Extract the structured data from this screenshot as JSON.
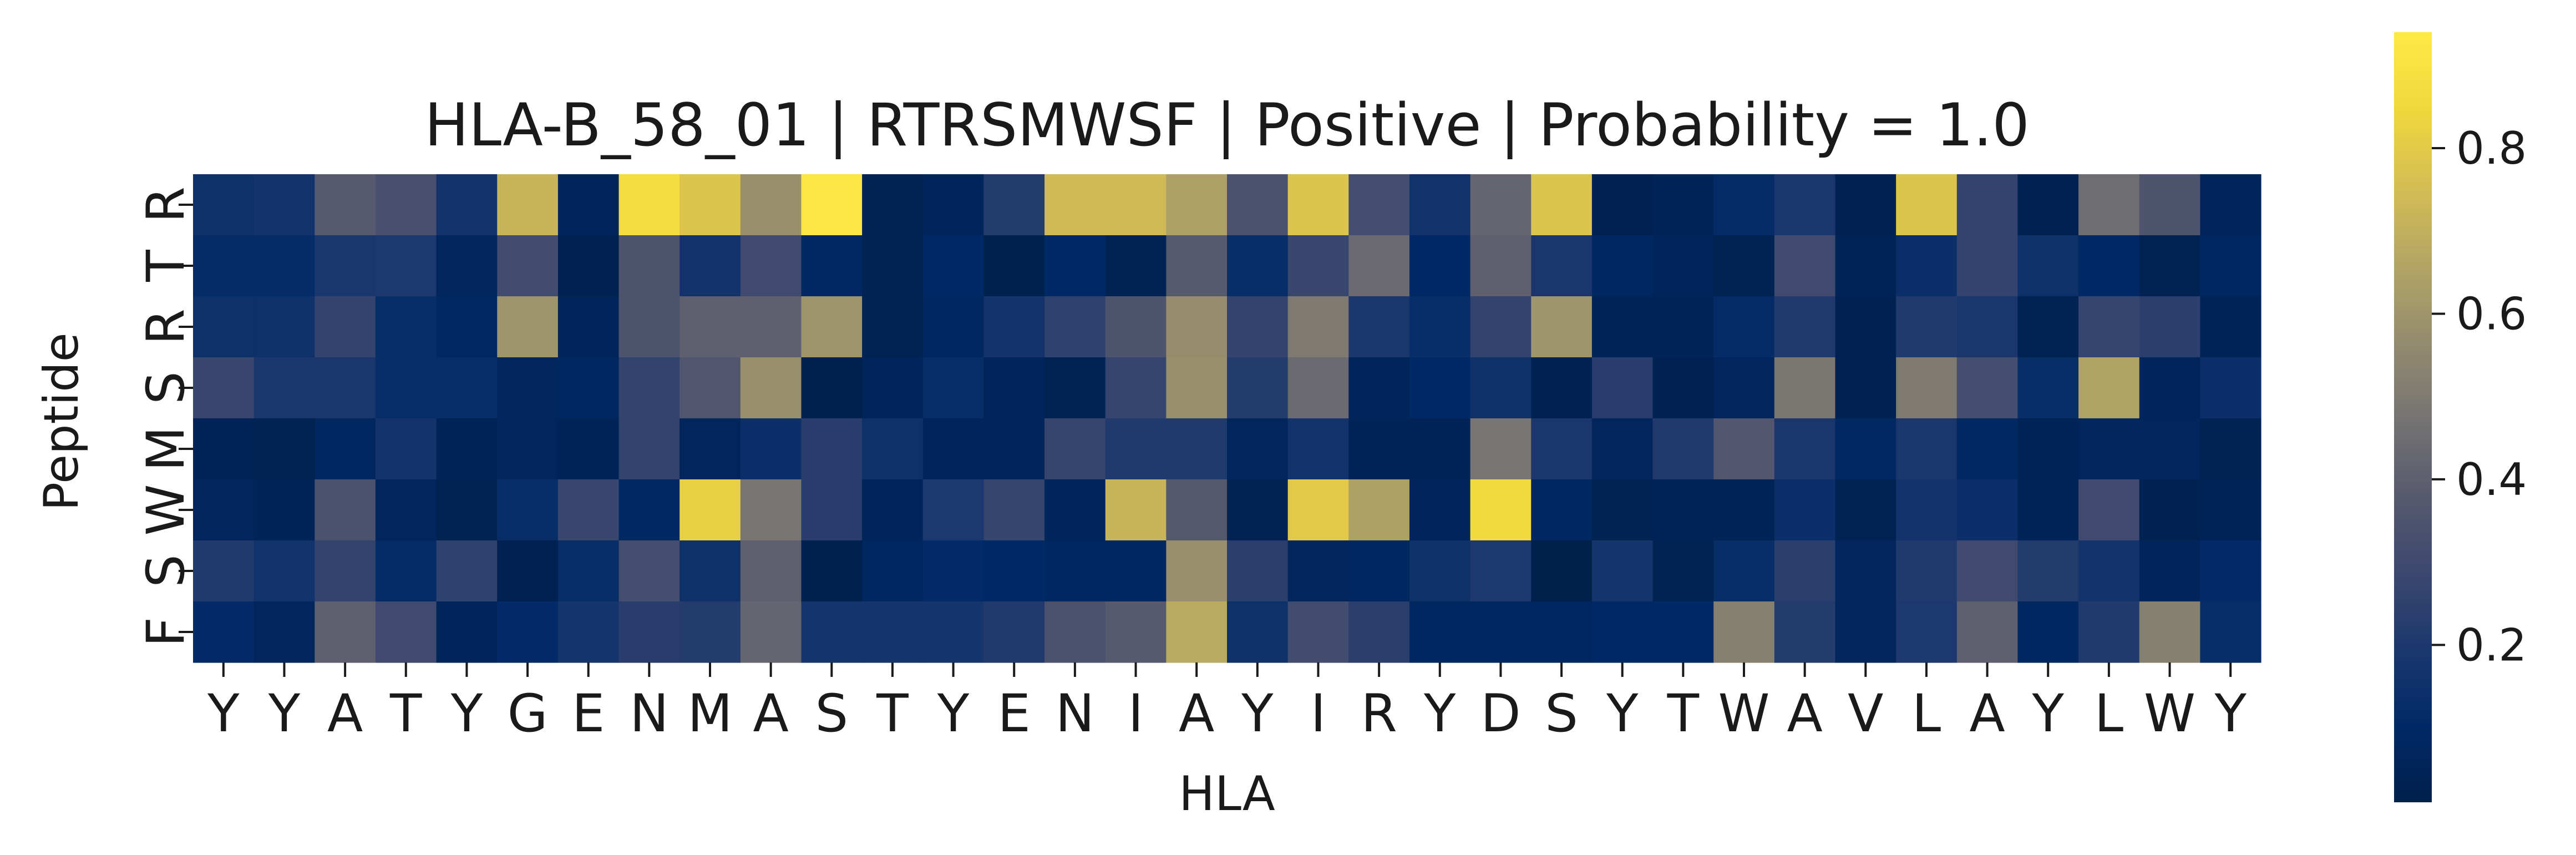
{
  "chart_data": {
    "type": "heatmap",
    "title": "HLA-B_58_01 | RTRSMWSF | Positive | Probability = 1.0",
    "xlabel": "HLA",
    "ylabel": "Peptide",
    "x_tick_labels": [
      "Y",
      "Y",
      "A",
      "T",
      "Y",
      "G",
      "E",
      "N",
      "M",
      "A",
      "S",
      "T",
      "Y",
      "E",
      "N",
      "I",
      "A",
      "Y",
      "I",
      "R",
      "Y",
      "D",
      "S",
      "Y",
      "T",
      "W",
      "A",
      "V",
      "L",
      "A",
      "Y",
      "L",
      "W",
      "Y"
    ],
    "y_tick_labels": [
      "R",
      "T",
      "R",
      "S",
      "M",
      "W",
      "S",
      "F"
    ],
    "colormap": "cividis",
    "colorbar": {
      "range": [
        0.01,
        0.94
      ],
      "ticks": [
        0.2,
        0.4,
        0.6,
        0.8
      ],
      "tick_labels": [
        "0.2",
        "0.4",
        "0.6",
        "0.8"
      ]
    },
    "values": [
      [
        0.15,
        0.17,
        0.38,
        0.33,
        0.17,
        0.72,
        0.06,
        0.88,
        0.78,
        0.58,
        0.93,
        0.04,
        0.06,
        0.22,
        0.74,
        0.74,
        0.64,
        0.34,
        0.78,
        0.32,
        0.16,
        0.42,
        0.78,
        0.03,
        0.05,
        0.12,
        0.19,
        0.03,
        0.78,
        0.26,
        0.03,
        0.45,
        0.35,
        0.06
      ],
      [
        0.12,
        0.12,
        0.19,
        0.2,
        0.07,
        0.31,
        0.03,
        0.35,
        0.17,
        0.3,
        0.09,
        0.04,
        0.1,
        0.02,
        0.1,
        0.04,
        0.38,
        0.13,
        0.28,
        0.44,
        0.1,
        0.4,
        0.19,
        0.08,
        0.06,
        0.04,
        0.3,
        0.05,
        0.14,
        0.26,
        0.15,
        0.1,
        0.04,
        0.08
      ],
      [
        0.15,
        0.15,
        0.26,
        0.13,
        0.09,
        0.6,
        0.06,
        0.35,
        0.4,
        0.4,
        0.6,
        0.04,
        0.08,
        0.17,
        0.25,
        0.35,
        0.57,
        0.26,
        0.5,
        0.19,
        0.13,
        0.26,
        0.6,
        0.05,
        0.05,
        0.12,
        0.21,
        0.03,
        0.21,
        0.19,
        0.04,
        0.27,
        0.24,
        0.05
      ],
      [
        0.28,
        0.19,
        0.19,
        0.13,
        0.13,
        0.07,
        0.08,
        0.26,
        0.36,
        0.58,
        0.02,
        0.06,
        0.13,
        0.06,
        0.04,
        0.27,
        0.58,
        0.22,
        0.44,
        0.06,
        0.1,
        0.15,
        0.03,
        0.23,
        0.03,
        0.07,
        0.49,
        0.03,
        0.5,
        0.32,
        0.13,
        0.65,
        0.06,
        0.14
      ],
      [
        0.05,
        0.04,
        0.08,
        0.17,
        0.05,
        0.07,
        0.05,
        0.26,
        0.07,
        0.14,
        0.23,
        0.15,
        0.06,
        0.06,
        0.27,
        0.21,
        0.21,
        0.07,
        0.17,
        0.05,
        0.05,
        0.48,
        0.19,
        0.07,
        0.21,
        0.36,
        0.19,
        0.09,
        0.19,
        0.09,
        0.05,
        0.07,
        0.07,
        0.04
      ],
      [
        0.07,
        0.05,
        0.34,
        0.07,
        0.04,
        0.13,
        0.28,
        0.09,
        0.82,
        0.48,
        0.23,
        0.06,
        0.2,
        0.27,
        0.06,
        0.72,
        0.37,
        0.04,
        0.8,
        0.64,
        0.06,
        0.86,
        0.08,
        0.04,
        0.05,
        0.05,
        0.14,
        0.04,
        0.17,
        0.14,
        0.05,
        0.3,
        0.03,
        0.05
      ],
      [
        0.21,
        0.16,
        0.26,
        0.12,
        0.25,
        0.03,
        0.13,
        0.32,
        0.15,
        0.4,
        0.02,
        0.08,
        0.11,
        0.1,
        0.08,
        0.08,
        0.58,
        0.24,
        0.07,
        0.08,
        0.15,
        0.2,
        0.01,
        0.18,
        0.04,
        0.13,
        0.24,
        0.07,
        0.21,
        0.3,
        0.22,
        0.17,
        0.06,
        0.11
      ],
      [
        0.11,
        0.07,
        0.4,
        0.3,
        0.06,
        0.11,
        0.18,
        0.23,
        0.22,
        0.42,
        0.18,
        0.18,
        0.18,
        0.21,
        0.34,
        0.38,
        0.68,
        0.15,
        0.31,
        0.24,
        0.08,
        0.08,
        0.08,
        0.1,
        0.1,
        0.52,
        0.22,
        0.07,
        0.2,
        0.4,
        0.08,
        0.21,
        0.52,
        0.13
      ]
    ]
  }
}
